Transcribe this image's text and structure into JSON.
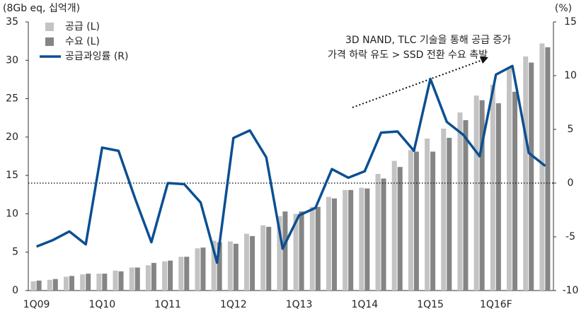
{
  "chart_data": {
    "type": "bar_line",
    "y_axis_label": "(8Gb eq, 십억개)",
    "y2_axis_label": "(%)",
    "annotations": [
      "3D NAND, TLC 기술을 통해 공급 증가",
      "가격 하락 유도 > SSD 전환 수요 촉발"
    ],
    "categories": [
      "1Q09",
      null,
      null,
      null,
      "1Q10",
      null,
      null,
      null,
      "1Q11",
      null,
      null,
      null,
      "1Q12",
      null,
      null,
      null,
      "1Q13",
      null,
      null,
      null,
      "1Q14",
      null,
      null,
      null,
      "1Q15",
      null,
      null,
      null,
      "1Q16F",
      null,
      null,
      null
    ],
    "series": [
      {
        "name": "공급 (L)",
        "color": "#c3c3c3",
        "kind": "bar",
        "axis": "y",
        "values": [
          1.2,
          1.4,
          1.8,
          2.1,
          2.2,
          2.6,
          3.0,
          3.3,
          3.8,
          4.4,
          5.5,
          6.5,
          6.4,
          7.4,
          8.5,
          9.7,
          10.0,
          10.9,
          12.2,
          13.1,
          13.4,
          15.2,
          16.9,
          18.3,
          19.8,
          21.1,
          23.2,
          25.4,
          26.8,
          29.0,
          30.5,
          32.2
        ]
      },
      {
        "name": "수요 (L)",
        "color": "#858585",
        "kind": "bar",
        "axis": "y",
        "values": [
          1.3,
          1.5,
          1.9,
          2.2,
          2.2,
          2.5,
          3.0,
          3.6,
          3.9,
          4.4,
          5.6,
          6.3,
          6.1,
          7.1,
          8.3,
          10.3,
          10.3,
          10.9,
          12.0,
          13.1,
          13.3,
          14.6,
          16.1,
          18.1,
          18.1,
          19.9,
          22.2,
          24.8,
          24.4,
          25.9,
          29.7,
          31.7
        ]
      },
      {
        "name": "공급과잉률 (R)",
        "color": "#0b4f92",
        "kind": "line",
        "axis": "y2",
        "values": [
          -5.9,
          -5.3,
          -4.5,
          -5.7,
          3.3,
          3.0,
          -1.4,
          -5.5,
          0.0,
          -0.1,
          -1.8,
          -7.4,
          4.2,
          4.9,
          2.4,
          -6.1,
          -3.0,
          -2.3,
          1.3,
          0.5,
          1.1,
          4.7,
          4.8,
          3.0,
          9.7,
          5.7,
          4.5,
          2.5,
          10.1,
          10.9,
          2.8,
          1.6
        ]
      }
    ],
    "ylim": [
      0,
      35
    ],
    "yticks": [
      0,
      5,
      10,
      15,
      20,
      25,
      30,
      35
    ],
    "y2lim": [
      -10,
      15
    ],
    "y2ticks": [
      -10,
      -5,
      0,
      5,
      10,
      15
    ],
    "y2_reference_line": 0,
    "legend": "top-left"
  }
}
